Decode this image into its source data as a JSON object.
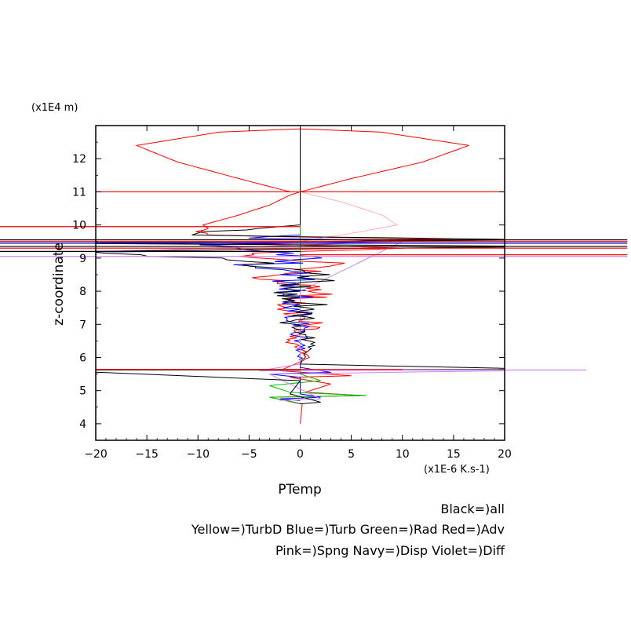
{
  "chart_data": {
    "type": "line",
    "title": "",
    "xlabel": "PTemp",
    "ylabel": "z-coordinate",
    "x_unit": "(x1E-6 K.s-1)",
    "y_unit": "(x1E4 m)",
    "xlim": [
      -20,
      20
    ],
    "ylim": [
      3.5,
      13.0
    ],
    "xticks": [
      "−20",
      "−15",
      "−10",
      "−5",
      "0",
      "5",
      "10",
      "15",
      "20"
    ],
    "yticks": [
      "4",
      "5",
      "6",
      "7",
      "8",
      "9",
      "10",
      "11",
      "12"
    ],
    "grid": false,
    "legend_lines": [
      "Black=)all",
      "Yellow=)TurbD Blue=)Turb Green=)Rad Red=)Adv",
      "Pink=)Spng Navy=)Disp Violet=)Diff"
    ],
    "series": [
      {
        "name": "Adv",
        "color": "#ff0000",
        "points": [
          [
            0,
            4.0
          ],
          [
            0.2,
            4.6
          ],
          [
            -3,
            4.8
          ],
          [
            6,
            4.85
          ],
          [
            0.5,
            4.95
          ],
          [
            3,
            5.2
          ],
          [
            -1,
            5.4
          ],
          [
            5,
            5.45
          ],
          [
            -2,
            5.6
          ],
          [
            1,
            6.0
          ],
          [
            -1,
            6.5
          ],
          [
            1.2,
            7.0
          ],
          [
            -1.5,
            7.5
          ],
          [
            2,
            8.0
          ],
          [
            -3,
            8.5
          ],
          [
            4,
            8.8
          ],
          [
            -6,
            9.1
          ],
          [
            8,
            9.3
          ],
          [
            -10,
            9.45
          ],
          [
            15,
            9.55
          ],
          [
            -8,
            9.7
          ],
          [
            -9.5,
            10.0
          ],
          [
            -6,
            10.3
          ],
          [
            -3,
            10.6
          ],
          [
            -1,
            10.9
          ],
          [
            0,
            11.0
          ],
          [
            5,
            11.4
          ],
          [
            12,
            11.9
          ],
          [
            16.5,
            12.4
          ],
          [
            8,
            12.8
          ],
          [
            0,
            12.9
          ],
          [
            -8,
            12.8
          ],
          [
            -16,
            12.4
          ],
          [
            -12,
            11.9
          ],
          [
            -6,
            11.4
          ],
          [
            -1,
            11.0
          ]
        ]
      },
      {
        "name": "Spng",
        "color": "#ffb0b8",
        "points": [
          [
            0,
            11.0
          ],
          [
            4,
            10.7
          ],
          [
            8,
            10.3
          ],
          [
            9.5,
            10.0
          ],
          [
            6,
            9.8
          ],
          [
            2,
            9.6
          ],
          [
            0,
            9.5
          ]
        ]
      },
      {
        "name": "Rad",
        "color": "#00c000",
        "points": [
          [
            0,
            4.6
          ],
          [
            -3,
            4.8
          ],
          [
            6.5,
            4.85
          ],
          [
            -1,
            4.95
          ],
          [
            -3,
            5.15
          ],
          [
            2,
            5.3
          ],
          [
            0,
            5.5
          ],
          [
            0,
            6.0
          ],
          [
            0,
            8.0
          ],
          [
            0,
            10.0
          ],
          [
            0,
            12.9
          ]
        ]
      },
      {
        "name": "Turb",
        "color": "#0000ff",
        "points": [
          [
            0,
            4.7
          ],
          [
            -2,
            4.75
          ],
          [
            2,
            4.8
          ],
          [
            0,
            4.9
          ],
          [
            0,
            5.4
          ],
          [
            -3,
            5.5
          ],
          [
            3,
            5.55
          ],
          [
            0,
            5.7
          ],
          [
            0,
            8.4
          ],
          [
            -4,
            8.8
          ],
          [
            4,
            9.0
          ],
          [
            -10,
            9.4
          ],
          [
            12,
            9.5
          ],
          [
            -6,
            9.6
          ],
          [
            0,
            9.7
          ]
        ]
      },
      {
        "name": "Diff",
        "color": "#cc88ee",
        "points": [
          [
            -2,
            4.7
          ],
          [
            2,
            4.75
          ],
          [
            -3,
            5.5
          ],
          [
            28,
            5.63
          ],
          [
            -4,
            5.6
          ],
          [
            0,
            5.8
          ],
          [
            0,
            8.0
          ],
          [
            10,
            9.5
          ],
          [
            -28,
            9.1
          ],
          [
            0,
            9.3
          ]
        ]
      },
      {
        "name": "all",
        "color": "#000000",
        "points": [
          [
            0,
            4.6
          ],
          [
            2,
            4.65
          ],
          [
            -1,
            4.9
          ],
          [
            0,
            5.3
          ],
          [
            -25,
            5.62
          ],
          [
            25,
            5.64
          ],
          [
            0,
            5.8
          ],
          [
            1,
            6.5
          ],
          [
            -1,
            7.0
          ],
          [
            1.5,
            7.5
          ],
          [
            -2,
            8.0
          ],
          [
            3,
            8.5
          ],
          [
            -5,
            8.9
          ],
          [
            -20,
            9.2
          ],
          [
            25,
            9.35
          ],
          [
            -25,
            9.45
          ],
          [
            25,
            9.55
          ],
          [
            -12,
            9.7
          ],
          [
            0,
            10.0
          ],
          [
            0,
            12.9
          ]
        ]
      }
    ]
  }
}
